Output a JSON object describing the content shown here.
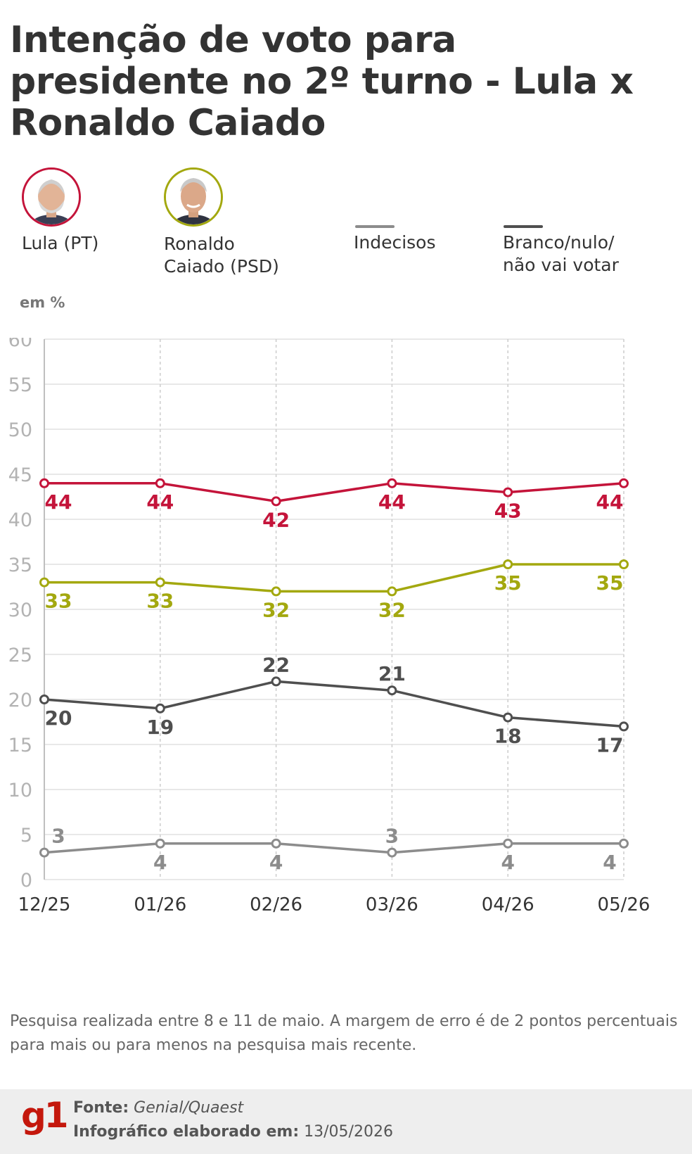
{
  "title": "Intenção de voto para presidente no 2º turno - Lula x Ronaldo Caiado",
  "legend": [
    {
      "label": "Lula (PT)",
      "color": "#c4143a",
      "icon": "candidate-photo"
    },
    {
      "label": "Ronaldo Caiado (PSD)",
      "color": "#a3a80f",
      "icon": "candidate-photo"
    },
    {
      "label": "Indecisos",
      "color": "#8c8c8c",
      "icon": "line-swatch"
    },
    {
      "label": "Branco/nulo/ não vai votar",
      "color": "#4f4f4f",
      "icon": "line-swatch"
    }
  ],
  "unit_label": "em %",
  "chart_data": {
    "type": "line",
    "x": [
      "12/25",
      "01/26",
      "02/26",
      "03/26",
      "04/26",
      "05/26"
    ],
    "ylim": [
      0,
      60
    ],
    "yticks": [
      0,
      5,
      10,
      15,
      20,
      25,
      30,
      35,
      40,
      45,
      50,
      55,
      60
    ],
    "grid": true,
    "series": [
      {
        "name": "Lula (PT)",
        "color": "#c4143a",
        "values": [
          44,
          44,
          42,
          44,
          43,
          44
        ]
      },
      {
        "name": "Ronaldo Caiado (PSD)",
        "color": "#a3a80f",
        "values": [
          33,
          33,
          32,
          32,
          35,
          35
        ]
      },
      {
        "name": "Branco/nulo/ não vai votar",
        "color": "#4f4f4f",
        "values": [
          20,
          19,
          22,
          21,
          18,
          17
        ]
      },
      {
        "name": "Indecisos",
        "color": "#8c8c8c",
        "values": [
          3,
          4,
          4,
          3,
          4,
          4
        ]
      }
    ]
  },
  "note": "Pesquisa realizada entre 8 e 11 de maio. A margem de erro é de 2 pontos percentuais para mais ou para menos na pesquisa mais recente.",
  "footer": {
    "logo": "g1",
    "source_label": "Fonte:",
    "source_value": "Genial/Quaest",
    "date_label": "Infográfico elaborado em:",
    "date_value": "13/05/2026"
  }
}
